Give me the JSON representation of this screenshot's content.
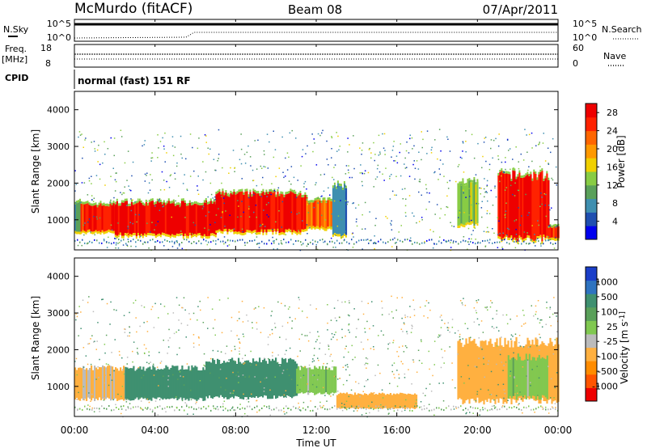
{
  "header": {
    "station": "McMurdo (fitACF)",
    "beam": "Beam 08",
    "date": "07/Apr/2011"
  },
  "strip": {
    "nsky_label": "N.Sky",
    "nsearch_label": "N.Search",
    "freq_label": "Freq.",
    "freq_unit": "[MHz]",
    "nave_label": "Nave",
    "cpid_label": "CPID",
    "cpid_value": "normal (fast) 151 RF",
    "noise_ticks": [
      "10^5",
      "10^0"
    ],
    "noise_ticks_right": [
      "10^5",
      "10^0"
    ],
    "freq_ticks": [
      "18",
      "8"
    ],
    "nave_ticks": [
      "60",
      "0"
    ]
  },
  "x_axis": {
    "label": "Time UT",
    "ticks": [
      "00:00",
      "04:00",
      "08:00",
      "12:00",
      "16:00",
      "20:00",
      "00:00"
    ]
  },
  "colors": {
    "power_scale": [
      "#0000ee",
      "#1f4fb0",
      "#3f8fb0",
      "#5aa05a",
      "#88cc44",
      "#f0d000",
      "#ff9900",
      "#ff6600",
      "#ff2200",
      "#ee0000"
    ],
    "velocity_scale": [
      "#1a3ec8",
      "#2e73c0",
      "#3f9070",
      "#5aa05a",
      "#80c850",
      "#bbbbbb",
      "#ffb040",
      "#ff8c00",
      "#ff5500",
      "#ee0000"
    ]
  },
  "chart_data": [
    {
      "type": "heatmap",
      "title": "",
      "xlabel": "Time UT",
      "ylabel": "Slant Range [km]",
      "x_range_hours": [
        0,
        24
      ],
      "ylim": [
        180,
        4500
      ],
      "y_ticks": [
        1000,
        2000,
        3000,
        4000
      ],
      "colorbar": {
        "label": "Power [dB]",
        "ticks": [
          "4",
          "8",
          "12",
          "16",
          "20",
          "24",
          "28"
        ],
        "range": [
          0,
          30
        ]
      },
      "regions": [
        {
          "t0": 0.0,
          "t1": 0.3,
          "r0": 650,
          "r1": 1500,
          "value": 10
        },
        {
          "t0": 0.3,
          "t1": 2.0,
          "r0": 700,
          "r1": 1400,
          "value": 26
        },
        {
          "t0": 2.0,
          "t1": 7.0,
          "r0": 600,
          "r1": 1450,
          "value": 29
        },
        {
          "t0": 7.0,
          "t1": 11.5,
          "r0": 700,
          "r1": 1700,
          "value": 28
        },
        {
          "t0": 11.5,
          "t1": 12.8,
          "r0": 800,
          "r1": 1500,
          "value": 22
        },
        {
          "t0": 12.8,
          "t1": 13.5,
          "r0": 600,
          "r1": 1900,
          "value": 8
        },
        {
          "t0": 19.0,
          "t1": 20.0,
          "r0": 900,
          "r1": 2000,
          "value": 14
        },
        {
          "t0": 21.0,
          "t1": 23.5,
          "r0": 500,
          "r1": 2200,
          "value": 28
        },
        {
          "t0": 23.5,
          "t1": 24.0,
          "r0": 500,
          "r1": 800,
          "value": 26
        }
      ]
    },
    {
      "type": "heatmap",
      "title": "",
      "xlabel": "Time UT",
      "ylabel": "Slant Range [km]",
      "x_range_hours": [
        0,
        24
      ],
      "ylim": [
        180,
        4500
      ],
      "y_ticks": [
        1000,
        2000,
        3000,
        4000
      ],
      "colorbar": {
        "label": "Velocity [m s^-1]",
        "ticks": [
          "1000",
          "500",
          "100",
          "25",
          "-25",
          "-100",
          "-500",
          "-1000"
        ]
      },
      "regions": [
        {
          "t0": 0.0,
          "t1": 2.5,
          "r0": 650,
          "r1": 1500,
          "value": -100
        },
        {
          "t0": 2.5,
          "t1": 6.5,
          "r0": 650,
          "r1": 1500,
          "value": 300
        },
        {
          "t0": 6.5,
          "t1": 11.0,
          "r0": 700,
          "r1": 1700,
          "value": 300
        },
        {
          "t0": 11.0,
          "t1": 13.0,
          "r0": 800,
          "r1": 1500,
          "value": 0
        },
        {
          "t0": 13.0,
          "t1": 17.0,
          "r0": 400,
          "r1": 800,
          "value": -200
        },
        {
          "t0": 19.0,
          "t1": 24.0,
          "r0": 600,
          "r1": 2200,
          "value": -150
        },
        {
          "t0": 21.5,
          "t1": 23.5,
          "r0": 700,
          "r1": 1800,
          "value": 0
        }
      ]
    }
  ]
}
